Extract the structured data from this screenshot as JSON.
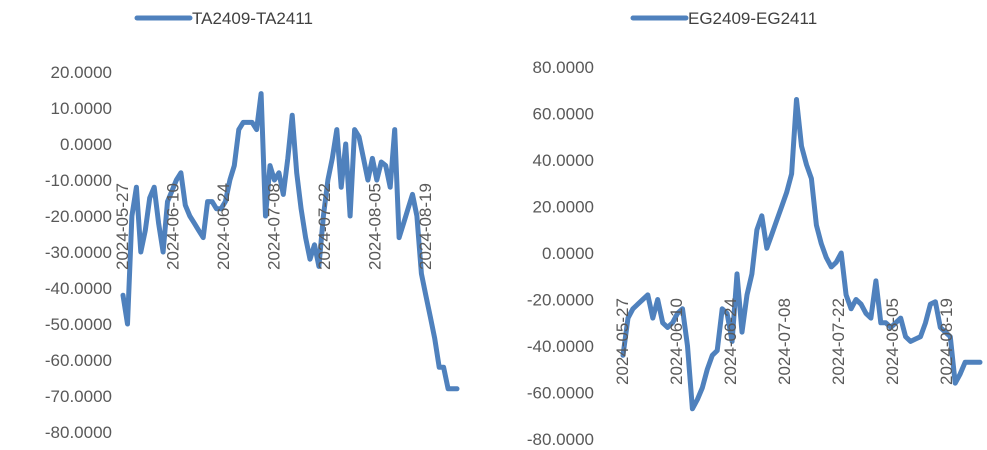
{
  "chart_data": [
    {
      "type": "line",
      "series": [
        {
          "name": "TA2409-TA2411",
          "color": "#4f81bd",
          "values": [
            -42,
            -50,
            -20,
            -12,
            -30,
            -24,
            -15,
            -12,
            -22,
            -30,
            -16,
            -13,
            -10,
            -8,
            -17,
            -20,
            -22,
            -24,
            -26,
            -16,
            -16,
            -18,
            -18,
            -16,
            -10,
            -6,
            4,
            6,
            6,
            6,
            4,
            14,
            -20,
            -6,
            -10,
            -8,
            -14,
            -4,
            8,
            -8,
            -18,
            -26,
            -32,
            -28,
            -34,
            -20,
            -10,
            -4,
            4,
            -12,
            0,
            -20,
            4,
            2,
            -4,
            -10,
            -4,
            -10,
            -5,
            -6,
            -12,
            4,
            -26,
            -22,
            -18,
            -14,
            -20,
            -36,
            -42,
            -48,
            -54,
            -62,
            -62,
            -68,
            -68,
            -68
          ]
        }
      ],
      "x_ticks": [
        "2024-05-27",
        "2024-06-10",
        "2024-06-24",
        "2024-07-08",
        "2024-07-22",
        "2024-08-05",
        "2024-08-19"
      ],
      "y_ticks": [
        "20.0000",
        "10.0000",
        "0.0000",
        "-10.0000",
        "-20.0000",
        "-30.0000",
        "-40.0000",
        "-50.0000",
        "-60.0000",
        "-70.0000",
        "-80.0000"
      ],
      "ylim": [
        -80,
        20
      ],
      "legend_position": "top"
    },
    {
      "type": "line",
      "series": [
        {
          "name": "EG2409-EG2411",
          "color": "#4f81bd",
          "values": [
            -44,
            -28,
            -24,
            -22,
            -20,
            -18,
            -28,
            -20,
            -30,
            -32,
            -30,
            -26,
            -24,
            -40,
            -67,
            -63,
            -58,
            -50,
            -44,
            -42,
            -24,
            -26,
            -38,
            -9,
            -34,
            -18,
            -9,
            10,
            16,
            2,
            8,
            14,
            20,
            26,
            34,
            66,
            46,
            38,
            32,
            12,
            4,
            -2,
            -6,
            -4,
            0,
            -18,
            -24,
            -20,
            -22,
            -26,
            -28,
            -12,
            -30,
            -30,
            -32,
            -30,
            -28,
            -36,
            -38,
            -37,
            -36,
            -30,
            -22,
            -21,
            -32,
            -34,
            -36,
            -56,
            -52,
            -47,
            -47,
            -47,
            -47
          ]
        }
      ],
      "x_ticks": [
        "2024-05-27",
        "2024-06-10",
        "2024-06-24",
        "2024-07-08",
        "2024-07-22",
        "2024-08-05",
        "2024-08-19"
      ],
      "y_ticks": [
        "80.0000",
        "60.0000",
        "40.0000",
        "20.0000",
        "0.0000",
        "-20.0000",
        "-40.0000",
        "-60.0000",
        "-80.0000"
      ],
      "ylim": [
        -80,
        80
      ],
      "legend_position": "top"
    }
  ]
}
